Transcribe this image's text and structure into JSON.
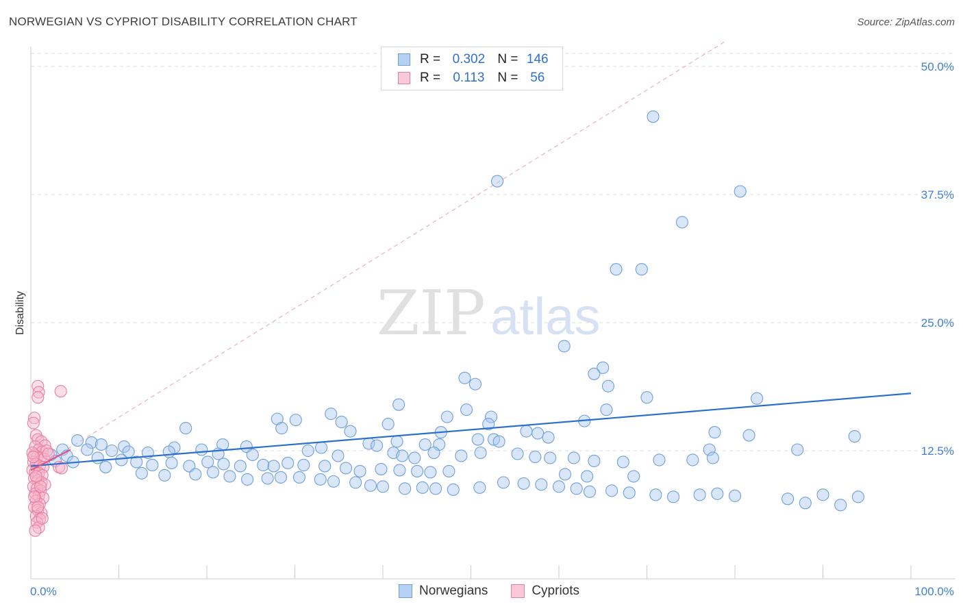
{
  "title": "NORWEGIAN VS CYPRIOT DISABILITY CORRELATION CHART",
  "source": "Source: ZipAtlas.com",
  "watermark": {
    "zip": "ZIP",
    "atlas": "atlas"
  },
  "colors": {
    "blue_fill": "#a9c8f0",
    "blue_stroke": "#6f9fd9",
    "blue_line": "#2a6fcc",
    "pink_fill": "#f7b8cb",
    "pink_stroke": "#ea7e9f",
    "pink_line": "#e05588",
    "grid": "#dddddd",
    "tick_text": "#3f7fd0"
  },
  "legend": {
    "rows": [
      {
        "r_label": "R =",
        "r_value": "0.302",
        "n_label": "N =",
        "n_value": "146"
      },
      {
        "r_label": "R =",
        "r_value": "0.113",
        "n_label": "N =",
        "n_value": "56"
      }
    ]
  },
  "chart_data": {
    "type": "scatter",
    "title": "NORWEGIAN VS CYPRIOT DISABILITY CORRELATION CHART",
    "xlabel": "",
    "ylabel": "Disability",
    "xlim": [
      0,
      100
    ],
    "ylim": [
      0,
      50
    ],
    "x_tick_labels": [
      "0.0%",
      "100.0%"
    ],
    "y_ticks": [
      12.5,
      25.0,
      37.5,
      50.0
    ],
    "y_tick_labels": [
      "12.5%",
      "25.0%",
      "37.5%",
      "50.0%"
    ],
    "grid": true,
    "legend_position": "bottom",
    "series": [
      {
        "name": "Norwegians",
        "trend": {
          "x": [
            0,
            100
          ],
          "y": [
            11.0,
            18.1
          ]
        },
        "points": [
          [
            70.7,
            45.1
          ],
          [
            53.0,
            38.8
          ],
          [
            80.6,
            37.8
          ],
          [
            74.0,
            34.8
          ],
          [
            66.5,
            30.2
          ],
          [
            69.4,
            30.2
          ],
          [
            60.6,
            22.7
          ],
          [
            65.0,
            20.6
          ],
          [
            64.0,
            20.0
          ],
          [
            49.3,
            19.6
          ],
          [
            50.5,
            19.0
          ],
          [
            65.6,
            18.8
          ],
          [
            70.0,
            17.7
          ],
          [
            82.5,
            17.6
          ],
          [
            41.8,
            17.0
          ],
          [
            49.5,
            16.5
          ],
          [
            65.4,
            16.5
          ],
          [
            34.1,
            16.1
          ],
          [
            47.3,
            15.8
          ],
          [
            52.3,
            15.8
          ],
          [
            28.0,
            15.6
          ],
          [
            30.1,
            15.5
          ],
          [
            35.3,
            15.3
          ],
          [
            40.6,
            15.1
          ],
          [
            52.0,
            15.1
          ],
          [
            62.9,
            15.4
          ],
          [
            17.6,
            14.7
          ],
          [
            28.5,
            14.7
          ],
          [
            36.3,
            14.4
          ],
          [
            46.6,
            14.3
          ],
          [
            56.3,
            14.4
          ],
          [
            57.6,
            14.2
          ],
          [
            77.7,
            14.3
          ],
          [
            81.6,
            14.0
          ],
          [
            58.8,
            13.8
          ],
          [
            93.6,
            13.9
          ],
          [
            5.3,
            13.5
          ],
          [
            21.8,
            13.1
          ],
          [
            38.4,
            13.2
          ],
          [
            50.8,
            13.6
          ],
          [
            52.6,
            13.6
          ],
          [
            6.9,
            13.3
          ],
          [
            53.2,
            13.4
          ],
          [
            41.6,
            13.4
          ],
          [
            8.0,
            13.1
          ],
          [
            10.6,
            12.9
          ],
          [
            16.3,
            12.8
          ],
          [
            24.5,
            12.9
          ],
          [
            33.0,
            12.8
          ],
          [
            39.3,
            13.0
          ],
          [
            44.8,
            13.1
          ],
          [
            46.4,
            13.1
          ],
          [
            77.1,
            12.6
          ],
          [
            87.1,
            12.6
          ],
          [
            51.1,
            12.3
          ],
          [
            3.6,
            12.6
          ],
          [
            6.4,
            12.6
          ],
          [
            9.2,
            12.5
          ],
          [
            11.1,
            12.4
          ],
          [
            13.3,
            12.3
          ],
          [
            15.7,
            12.4
          ],
          [
            19.4,
            12.6
          ],
          [
            21.3,
            12.2
          ],
          [
            25.2,
            12.1
          ],
          [
            31.5,
            12.5
          ],
          [
            34.9,
            12.0
          ],
          [
            41.2,
            12.3
          ],
          [
            42.2,
            12.0
          ],
          [
            43.6,
            11.8
          ],
          [
            45.8,
            12.3
          ],
          [
            48.9,
            12.0
          ],
          [
            55.3,
            12.2
          ],
          [
            57.3,
            11.9
          ],
          [
            59.0,
            11.8
          ],
          [
            61.7,
            11.8
          ],
          [
            64.0,
            11.5
          ],
          [
            67.3,
            11.4
          ],
          [
            71.4,
            11.6
          ],
          [
            75.2,
            11.6
          ],
          [
            77.5,
            11.8
          ],
          [
            2.3,
            12.1
          ],
          [
            4.1,
            12.0
          ],
          [
            7.6,
            11.8
          ],
          [
            10.3,
            11.6
          ],
          [
            12.0,
            11.4
          ],
          [
            13.8,
            11.1
          ],
          [
            16.0,
            11.3
          ],
          [
            18.0,
            11.0
          ],
          [
            20.1,
            11.4
          ],
          [
            21.9,
            11.2
          ],
          [
            23.8,
            11.0
          ],
          [
            26.4,
            11.1
          ],
          [
            27.6,
            11.0
          ],
          [
            29.2,
            11.3
          ],
          [
            31.0,
            11.1
          ],
          [
            33.4,
            11.0
          ],
          [
            35.8,
            10.8
          ],
          [
            37.4,
            10.5
          ],
          [
            39.8,
            10.7
          ],
          [
            41.9,
            10.6
          ],
          [
            43.9,
            10.5
          ],
          [
            45.4,
            10.4
          ],
          [
            47.5,
            10.5
          ],
          [
            60.7,
            10.2
          ],
          [
            63.2,
            10.0
          ],
          [
            68.5,
            10.0
          ],
          [
            2.8,
            11.5
          ],
          [
            4.8,
            11.4
          ],
          [
            8.5,
            10.9
          ],
          [
            12.6,
            10.3
          ],
          [
            15.2,
            10.1
          ],
          [
            18.7,
            10.2
          ],
          [
            20.7,
            10.4
          ],
          [
            22.6,
            10.0
          ],
          [
            24.6,
            9.7
          ],
          [
            26.9,
            9.8
          ],
          [
            28.4,
            9.9
          ],
          [
            30.5,
            9.9
          ],
          [
            32.9,
            9.7
          ],
          [
            34.4,
            9.5
          ],
          [
            36.9,
            9.4
          ],
          [
            38.6,
            9.1
          ],
          [
            40.0,
            9.0
          ],
          [
            42.5,
            8.8
          ],
          [
            44.5,
            8.9
          ],
          [
            46.0,
            8.8
          ],
          [
            48.0,
            8.7
          ],
          [
            51.0,
            8.9
          ],
          [
            53.7,
            9.4
          ],
          [
            56.0,
            9.3
          ],
          [
            58.0,
            9.2
          ],
          [
            60.0,
            9.0
          ],
          [
            62.0,
            8.8
          ],
          [
            63.5,
            8.5
          ],
          [
            66.0,
            8.6
          ],
          [
            68.0,
            8.4
          ],
          [
            71.0,
            8.2
          ],
          [
            73.0,
            8.0
          ],
          [
            76.0,
            8.2
          ],
          [
            78.0,
            8.3
          ],
          [
            80.0,
            8.1
          ],
          [
            86.0,
            7.8
          ],
          [
            90.0,
            8.2
          ],
          [
            94.0,
            8.0
          ],
          [
            88.0,
            7.4
          ],
          [
            92.0,
            7.2
          ]
        ]
      },
      {
        "name": "Cypriots",
        "trend": {
          "x": [
            0,
            4.5
          ],
          "y": [
            10.6,
            12.6
          ]
        },
        "points": [
          [
            0.8,
            18.8
          ],
          [
            0.9,
            18.2
          ],
          [
            0.8,
            17.7
          ],
          [
            3.4,
            18.3
          ],
          [
            0.4,
            15.7
          ],
          [
            0.3,
            15.2
          ],
          [
            0.6,
            14.0
          ],
          [
            0.8,
            13.6
          ],
          [
            1.2,
            13.4
          ],
          [
            1.6,
            13.0
          ],
          [
            0.5,
            12.9
          ],
          [
            0.9,
            12.6
          ],
          [
            1.3,
            12.4
          ],
          [
            0.4,
            12.1
          ],
          [
            0.7,
            11.9
          ],
          [
            1.1,
            11.8
          ],
          [
            1.5,
            11.7
          ],
          [
            0.3,
            11.4
          ],
          [
            0.6,
            11.2
          ],
          [
            1.0,
            11.0
          ],
          [
            1.4,
            10.9
          ],
          [
            3.2,
            10.9
          ],
          [
            3.5,
            10.8
          ],
          [
            0.2,
            10.6
          ],
          [
            0.5,
            10.4
          ],
          [
            0.9,
            10.3
          ],
          [
            1.3,
            10.1
          ],
          [
            0.4,
            9.8
          ],
          [
            0.8,
            9.6
          ],
          [
            1.2,
            9.4
          ],
          [
            1.6,
            9.2
          ],
          [
            0.3,
            9.0
          ],
          [
            0.7,
            8.8
          ],
          [
            1.1,
            8.6
          ],
          [
            0.5,
            8.3
          ],
          [
            0.9,
            8.1
          ],
          [
            1.4,
            7.9
          ],
          [
            0.6,
            7.6
          ],
          [
            1.0,
            7.3
          ],
          [
            0.4,
            7.0
          ],
          [
            0.8,
            6.7
          ],
          [
            1.2,
            6.4
          ],
          [
            0.6,
            6.1
          ],
          [
            1.0,
            5.8
          ],
          [
            0.7,
            5.5
          ],
          [
            0.9,
            5.0
          ],
          [
            0.5,
            4.7
          ],
          [
            1.3,
            5.9
          ],
          [
            0.2,
            12.3
          ],
          [
            0.3,
            11.9
          ],
          [
            1.8,
            12.5
          ],
          [
            2.0,
            12.2
          ],
          [
            0.6,
            10.0
          ],
          [
            1.1,
            9.0
          ],
          [
            0.4,
            8.0
          ],
          [
            0.8,
            7.0
          ]
        ]
      }
    ]
  },
  "bottom_legend": {
    "items": [
      "Norwegians",
      "Cypriots"
    ]
  }
}
